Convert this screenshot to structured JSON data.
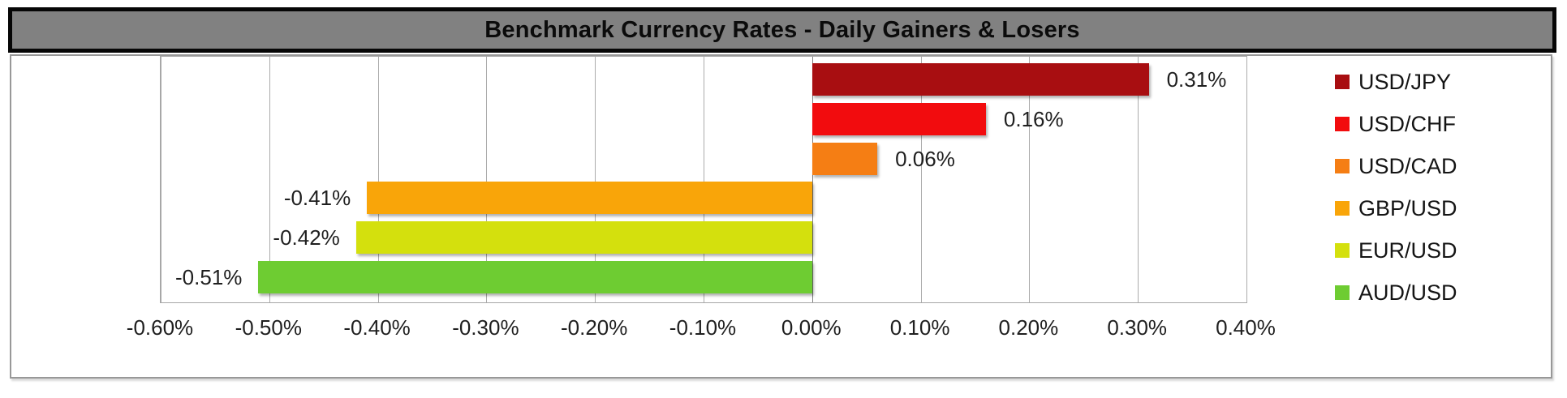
{
  "header": {
    "title": "Benchmark Currency Rates - Daily Gainers & Losers"
  },
  "chart_data": {
    "type": "bar",
    "orientation": "horizontal",
    "title": "Benchmark Currency Rates - Daily Gainers & Losers",
    "categories": [
      "USD/JPY",
      "USD/CHF",
      "USD/CAD",
      "GBP/USD",
      "EUR/USD",
      "AUD/USD"
    ],
    "values": [
      0.31,
      0.16,
      0.06,
      -0.41,
      -0.42,
      -0.51
    ],
    "value_labels": [
      "0.31%",
      "0.16%",
      "0.06%",
      "-0.41%",
      "-0.42%",
      "-0.51%"
    ],
    "colors": [
      "#A80E11",
      "#F20C0E",
      "#F57E14",
      "#F9A509",
      "#D4E00D",
      "#6ECC32"
    ],
    "xlim": [
      -0.6,
      0.4
    ],
    "x_ticks": [
      {
        "value": -0.6,
        "label": "-0.60%"
      },
      {
        "value": -0.5,
        "label": "-0.50%"
      },
      {
        "value": -0.4,
        "label": "-0.40%"
      },
      {
        "value": -0.3,
        "label": "-0.30%"
      },
      {
        "value": -0.2,
        "label": "-0.20%"
      },
      {
        "value": -0.1,
        "label": "-0.10%"
      },
      {
        "value": 0.0,
        "label": "0.00%"
      },
      {
        "value": 0.1,
        "label": "0.10%"
      },
      {
        "value": 0.2,
        "label": "0.20%"
      },
      {
        "value": 0.3,
        "label": "0.30%"
      },
      {
        "value": 0.4,
        "label": "0.40%"
      }
    ],
    "grid": true,
    "legend_position": "right",
    "legend": [
      "USD/JPY",
      "USD/CHF",
      "USD/CAD",
      "GBP/USD",
      "EUR/USD",
      "AUD/USD"
    ],
    "style_colors": {
      "banner_fill": "#818181",
      "banner_border": "#060606",
      "gridline": "#ABABAB",
      "zero_line": "#7E7E7E",
      "plot_border": "#A6A6A6",
      "label_text": "#1F1F1F"
    }
  }
}
